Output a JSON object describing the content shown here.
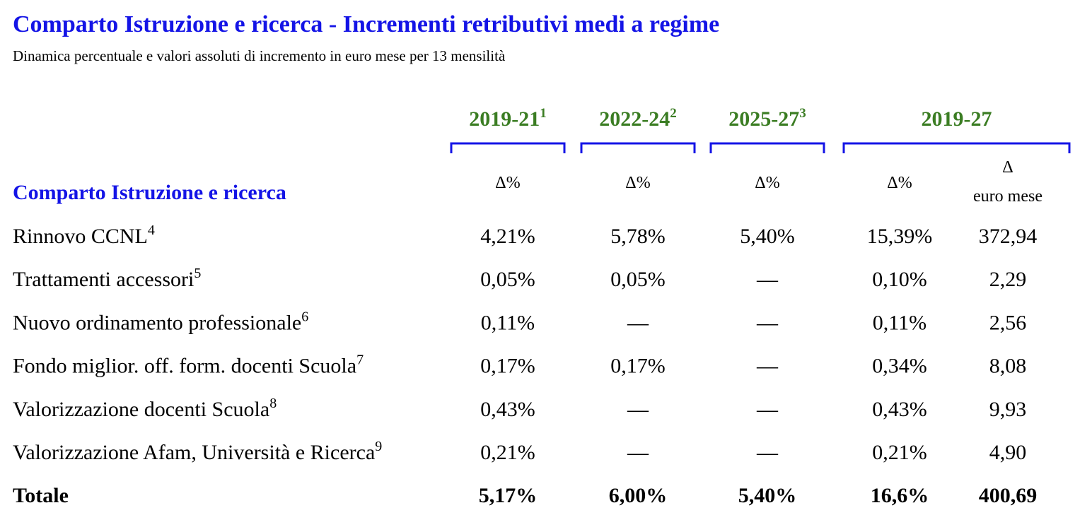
{
  "title": "Comparto Istruzione e ricerca - Incrementi retributivi medi a regime",
  "subtitle": "Dinamica percentuale e valori assoluti di incremento in euro mese per 13 mensilità",
  "section_label": "Comparto Istruzione e ricerca",
  "column_groups": [
    {
      "label": "2019-21",
      "note": "1"
    },
    {
      "label": "2022-24",
      "note": "2"
    },
    {
      "label": "2025-27",
      "note": "3"
    },
    {
      "label": "2019-27"
    }
  ],
  "subheaders": [
    "Δ%",
    "Δ%",
    "Δ%",
    "Δ%",
    {
      "symbol": "Δ",
      "label": "euro mese"
    }
  ],
  "rows": [
    {
      "label": "Rinnovo CCNL",
      "note": "4",
      "cells": [
        "4,21%",
        "5,78%",
        "5,40%",
        "15,39%",
        "372,94"
      ]
    },
    {
      "label": "Trattamenti accessori",
      "note": "5",
      "cells": [
        "0,05%",
        "0,05%",
        "—",
        "0,10%",
        "2,29"
      ]
    },
    {
      "label": "Nuovo ordinamento professionale",
      "note": "6",
      "cells": [
        "0,11%",
        "—",
        "—",
        "0,11%",
        "2,56"
      ]
    },
    {
      "label": "Fondo miglior. off. form. docenti Scuola",
      "note": "7",
      "cells": [
        "0,17%",
        "0,17%",
        "—",
        "0,34%",
        "8,08"
      ]
    },
    {
      "label": "Valorizzazione docenti Scuola",
      "note": "8",
      "cells": [
        "0,43%",
        "—",
        "—",
        "0,43%",
        "9,93"
      ]
    },
    {
      "label": "Valorizzazione Afam, Università e Ricerca",
      "note": "9",
      "cells": [
        "0,21%",
        "—",
        "—",
        "0,21%",
        "4,90"
      ]
    }
  ],
  "total": {
    "label": "Totale",
    "cells": [
      "5,17%",
      "6,00%",
      "5,40%",
      "16,6%",
      "400,69"
    ]
  }
}
